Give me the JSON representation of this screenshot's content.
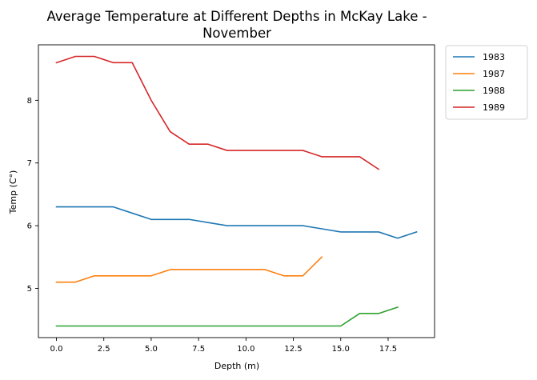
{
  "chart_data": {
    "type": "line",
    "title_lines": [
      "Average Temperature at Different Depths in McKay Lake -",
      "November"
    ],
    "xlabel": "Depth (m)",
    "ylabel": "Temp (C°)",
    "xlim": [
      -0.95,
      19.95
    ],
    "ylim": [
      4.215,
      8.885
    ],
    "xticks": [
      0,
      2.5,
      5,
      7.5,
      10,
      12.5,
      15,
      17.5
    ],
    "xtick_labels": [
      "0.0",
      "2.5",
      "5.0",
      "7.5",
      "10.0",
      "12.5",
      "15.0",
      "17.5"
    ],
    "yticks": [
      5,
      6,
      7,
      8
    ],
    "ytick_labels": [
      "5",
      "6",
      "7",
      "8"
    ],
    "grid": false,
    "legend_position": "outside-top-right",
    "series": [
      {
        "name": "1983",
        "color": "#1f77b4",
        "x": [
          0,
          1,
          2,
          3,
          4,
          5,
          6,
          7,
          8,
          9,
          10,
          11,
          12,
          13,
          14,
          15,
          16,
          17,
          18,
          19
        ],
        "y": [
          6.3,
          6.3,
          6.3,
          6.3,
          6.2,
          6.1,
          6.1,
          6.1,
          6.05,
          6.0,
          6.0,
          6.0,
          6.0,
          6.0,
          5.95,
          5.9,
          5.9,
          5.9,
          5.8,
          5.9
        ]
      },
      {
        "name": "1987",
        "color": "#ff7f0e",
        "x": [
          0,
          1,
          2,
          3,
          4,
          5,
          6,
          7,
          8,
          9,
          10,
          11,
          12,
          13,
          14
        ],
        "y": [
          5.1,
          5.1,
          5.2,
          5.2,
          5.2,
          5.2,
          5.3,
          5.3,
          5.3,
          5.3,
          5.3,
          5.3,
          5.2,
          5.2,
          5.5
        ]
      },
      {
        "name": "1988",
        "color": "#2ca02c",
        "x": [
          0,
          1,
          2,
          3,
          4,
          5,
          6,
          7,
          8,
          9,
          10,
          11,
          12,
          13,
          14,
          15,
          16,
          17,
          18
        ],
        "y": [
          4.4,
          4.4,
          4.4,
          4.4,
          4.4,
          4.4,
          4.4,
          4.4,
          4.4,
          4.4,
          4.4,
          4.4,
          4.4,
          4.4,
          4.4,
          4.4,
          4.6,
          4.6,
          4.7
        ]
      },
      {
        "name": "1989",
        "color": "#d62728",
        "x": [
          0,
          1,
          2,
          3,
          4,
          5,
          6,
          7,
          8,
          9,
          10,
          11,
          12,
          13,
          14,
          15,
          16,
          17
        ],
        "y": [
          8.6,
          8.7,
          8.7,
          8.6,
          8.6,
          8.0,
          7.5,
          7.3,
          7.3,
          7.2,
          7.2,
          7.2,
          7.2,
          7.2,
          7.1,
          7.1,
          7.1,
          6.9
        ]
      }
    ]
  }
}
